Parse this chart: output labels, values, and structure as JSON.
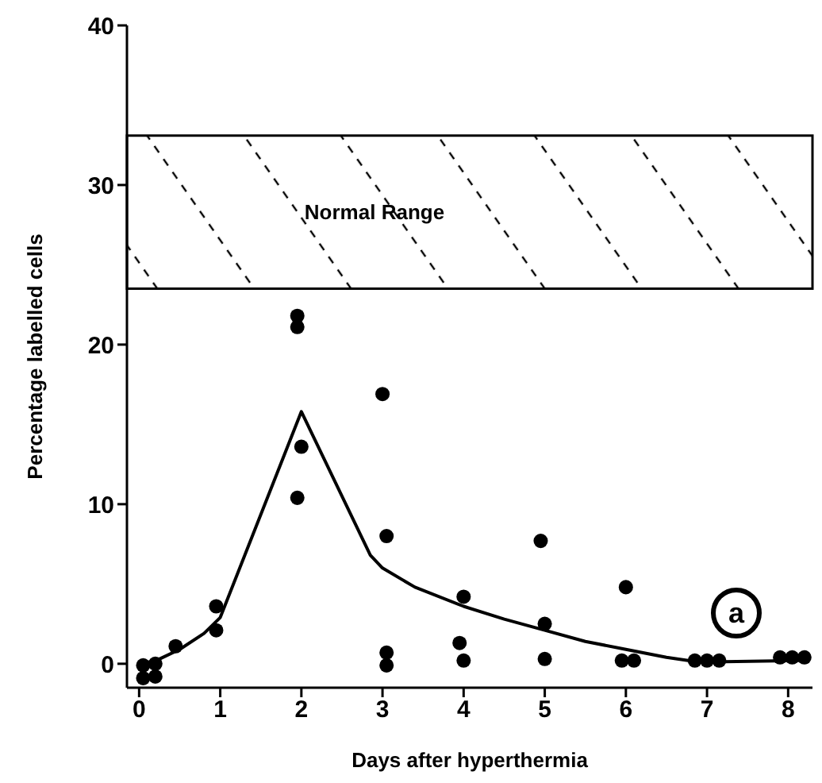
{
  "chart_data": {
    "type": "scatter",
    "xlabel": "Days after hyperthermia",
    "ylabel": "Percentage labelled cells",
    "xlim": [
      -0.15,
      8.3
    ],
    "xticks": [
      0,
      1,
      2,
      3,
      4,
      5,
      6,
      7,
      8
    ],
    "ylim": [
      -1.5,
      40
    ],
    "yticks": [
      0,
      10,
      20,
      30,
      40
    ],
    "series": [
      {
        "marker": "circle",
        "color": "#000000",
        "x": [
          0.05,
          0.05,
          0.2,
          0.2,
          0.45,
          0.95,
          0.95,
          1.95,
          1.95,
          2,
          1.95,
          3.0,
          3.05,
          3.05,
          3.05,
          4.0,
          3.95,
          4.0,
          4.95,
          5.0,
          5.0,
          6.0,
          5.95,
          6.1,
          6.85,
          7.0,
          7.15,
          7.9,
          8.05,
          8.2
        ],
        "values": [
          -0.1,
          -0.9,
          0,
          -0.8,
          1.1,
          3.6,
          2.1,
          21.8,
          21.1,
          13.6,
          10.4,
          16.9,
          8.0,
          0.7,
          -0.1,
          4.2,
          1.3,
          0.2,
          7.7,
          2.5,
          0.3,
          4.8,
          0.2,
          0.2,
          0.2,
          0.2,
          0.2,
          0.4,
          0.4,
          0.4
        ]
      },
      {
        "type": "line",
        "marker": "none",
        "line_style": "solid",
        "color": "#000000",
        "x": [
          0.05,
          0.25,
          0.5,
          0.8,
          1,
          2,
          2.85,
          3,
          3.4,
          4,
          4.5,
          5,
          5.5,
          6,
          6.5,
          6.9,
          8.15
        ],
        "values": [
          0,
          0.3,
          0.9,
          1.9,
          2.9,
          15.8,
          6.8,
          6.0,
          4.8,
          3.6,
          2.8,
          2.1,
          1.4,
          0.9,
          0.4,
          0.1,
          0.2
        ]
      }
    ],
    "bands": [
      {
        "axis": "y",
        "from": 23.5,
        "to": 33.1,
        "label": "Normal Range",
        "color": "#000000"
      }
    ],
    "annotations": [
      "a"
    ],
    "grid": false
  }
}
